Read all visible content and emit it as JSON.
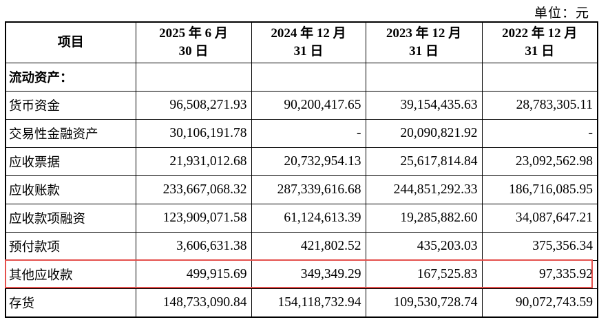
{
  "unit_label": "单位：元",
  "table": {
    "headers": [
      {
        "line1": "项目",
        "line2": ""
      },
      {
        "line1": "2025 年 6 月",
        "line2": "30 日"
      },
      {
        "line1": "2024 年 12 月",
        "line2": "31 日"
      },
      {
        "line1": "2023 年 12 月",
        "line2": "31 日"
      },
      {
        "line1": "2022 年 12 月",
        "line2": "31 日"
      }
    ],
    "rows": [
      {
        "label": "流动资产：",
        "values": [
          "",
          "",
          "",
          ""
        ]
      },
      {
        "label": "货币资金",
        "values": [
          "96,508,271.93",
          "90,200,417.65",
          "39,154,435.63",
          "28,783,305.11"
        ]
      },
      {
        "label": "交易性金融资产",
        "values": [
          "30,106,191.78",
          "-",
          "20,090,821.92",
          "-"
        ]
      },
      {
        "label": "应收票据",
        "values": [
          "21,931,012.68",
          "20,732,954.13",
          "25,617,814.84",
          "23,092,562.98"
        ]
      },
      {
        "label": "应收账款",
        "values": [
          "233,667,068.32",
          "287,339,616.68",
          "244,851,292.33",
          "186,716,085.95"
        ]
      },
      {
        "label": "应收款项融资",
        "values": [
          "123,909,071.58",
          "61,124,613.39",
          "19,285,882.60",
          "34,087,647.21"
        ]
      },
      {
        "label": "预付款项",
        "values": [
          "3,606,631.38",
          "421,802.52",
          "435,203.03",
          "375,356.34"
        ]
      },
      {
        "label": "其他应收款",
        "values": [
          "499,915.69",
          "349,349.29",
          "167,525.83",
          "97,335.92"
        ]
      },
      {
        "label": "存货",
        "values": [
          "148,733,090.84",
          "154,118,732.94",
          "109,530,728.74",
          "90,072,743.59"
        ]
      }
    ]
  },
  "colors": {
    "highlight_border": "#e4504c"
  }
}
